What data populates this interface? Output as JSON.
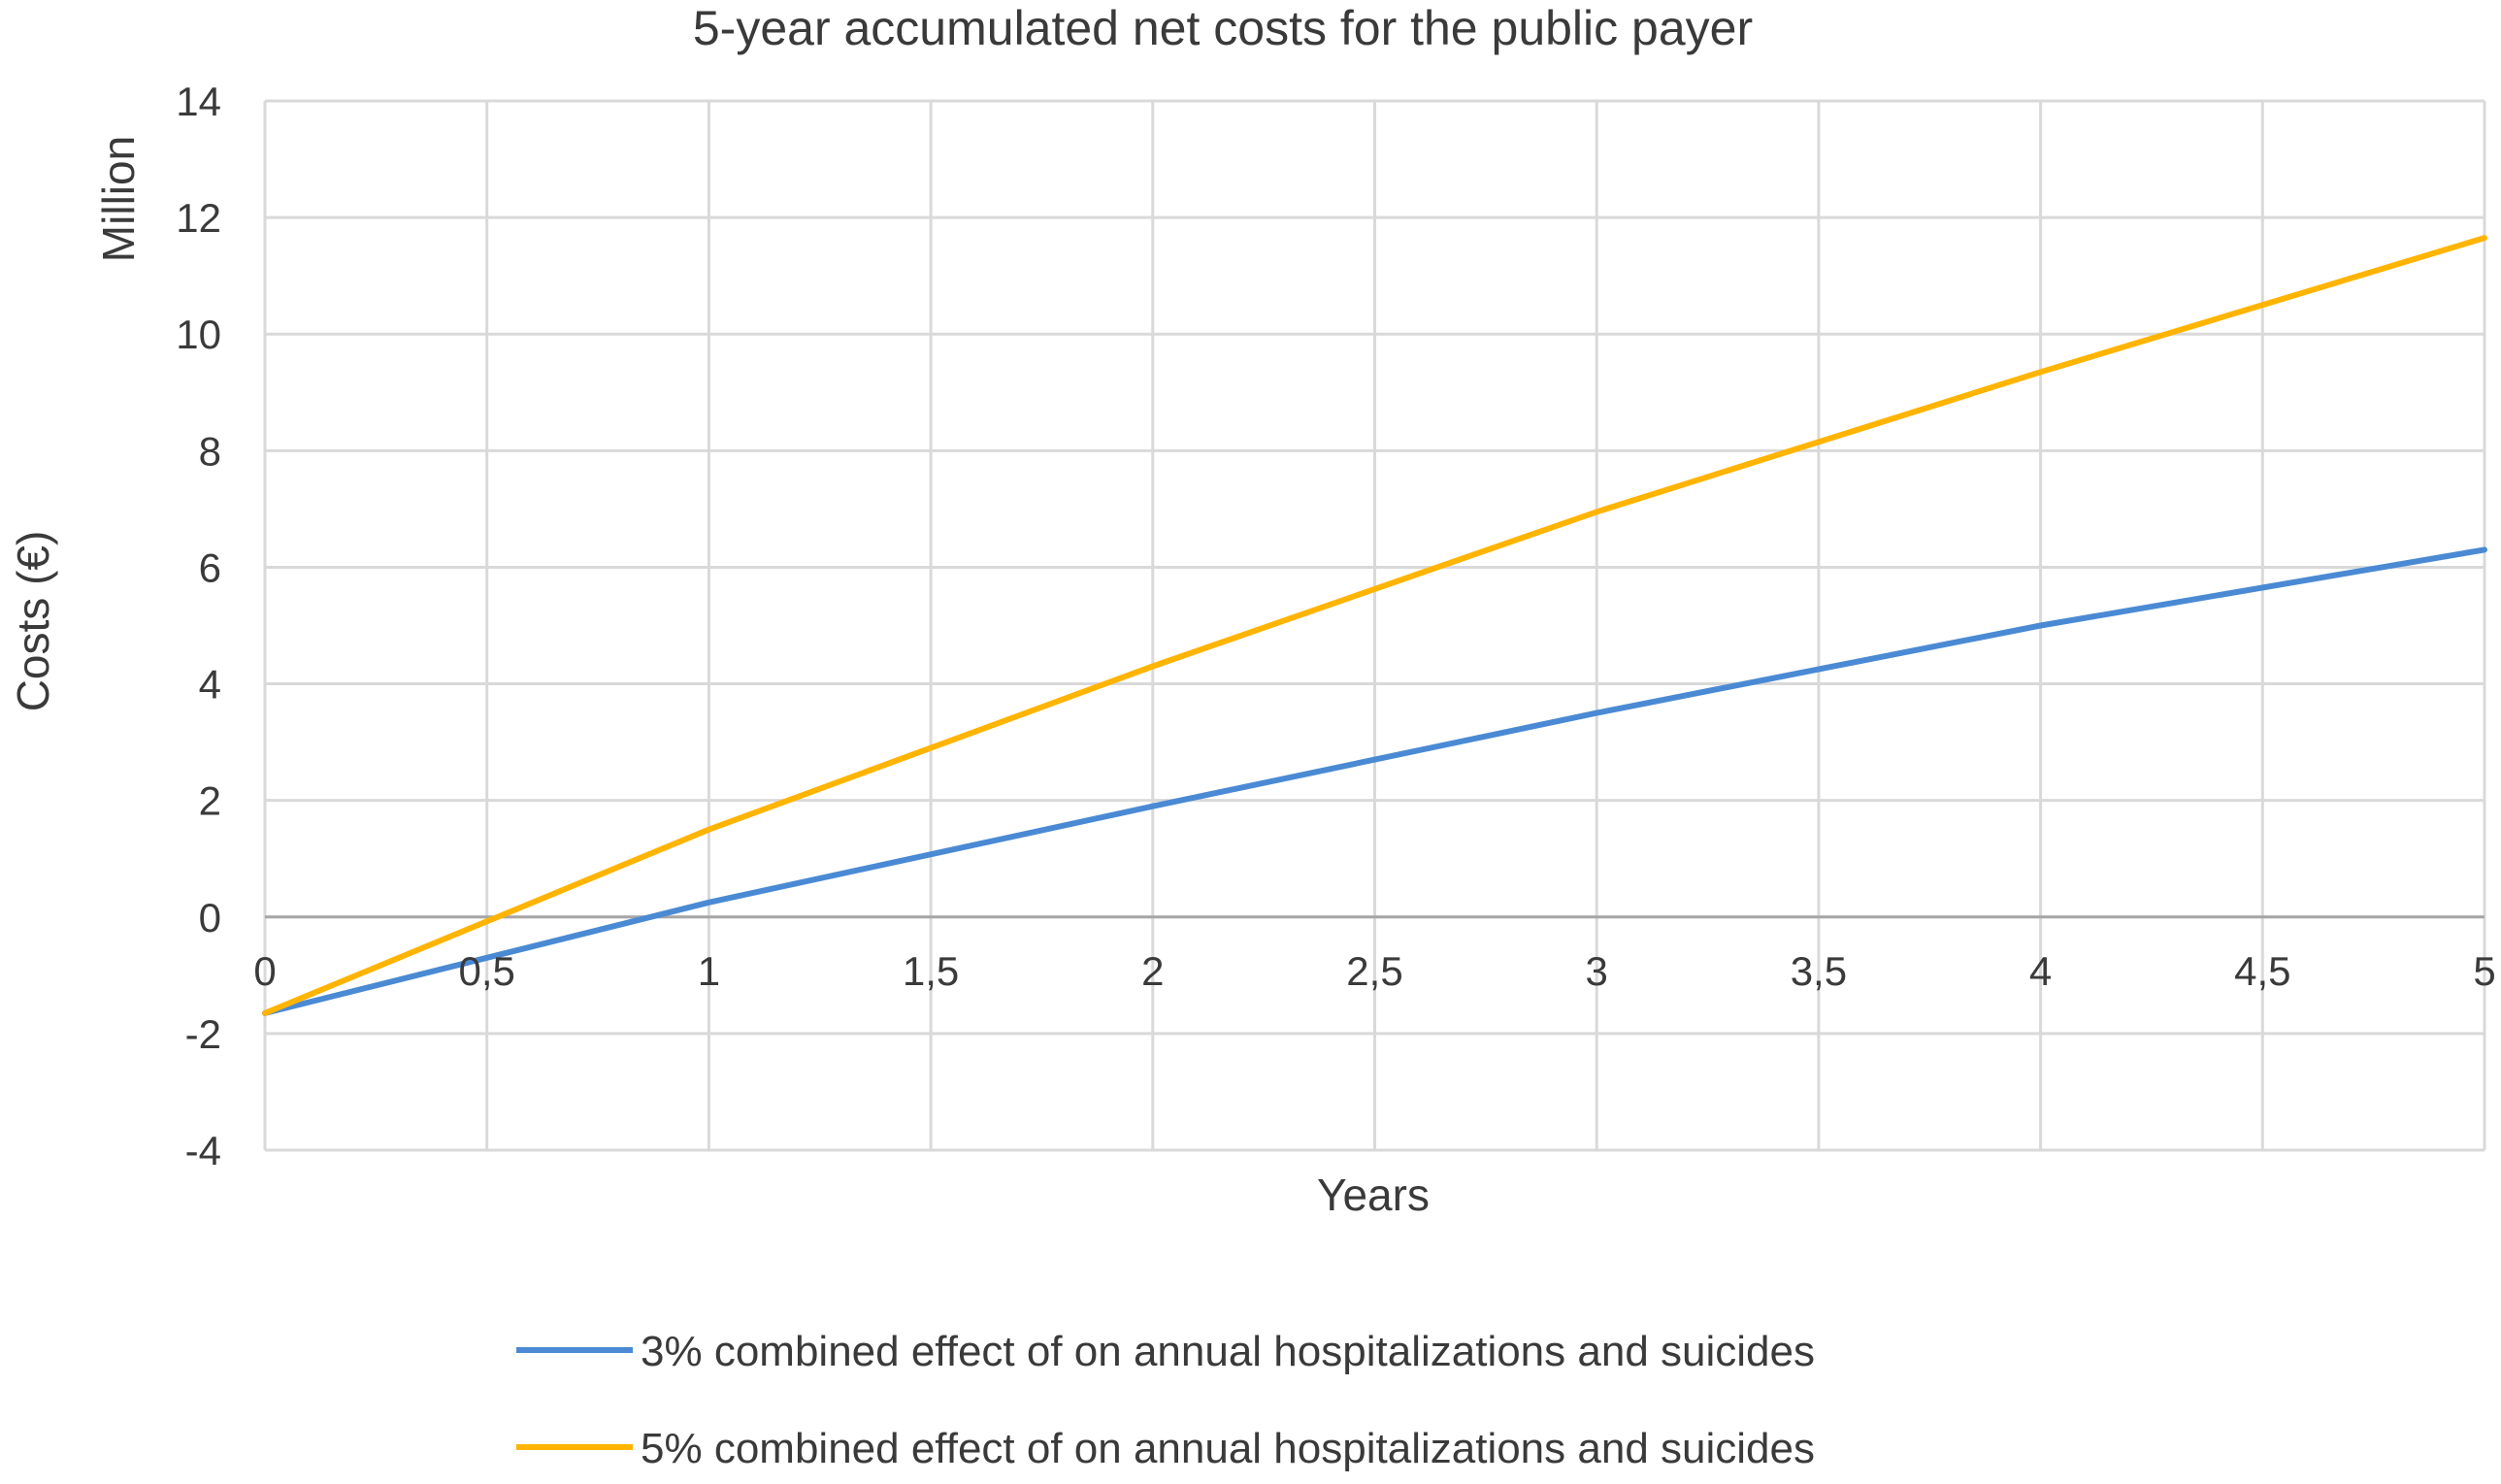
{
  "chart_data": {
    "type": "line",
    "title": "5-year accumulated net costs for the public payer",
    "xlabel": "Years",
    "ylabel": "Costs (€)",
    "ylabel_unit": "Million",
    "xlim": [
      0,
      5
    ],
    "ylim": [
      -4,
      14
    ],
    "x_ticks": [
      "0",
      "0,5",
      "1",
      "1,5",
      "2",
      "2,5",
      "3",
      "3,5",
      "4",
      "4,5",
      "5"
    ],
    "x_tick_values": [
      0,
      0.5,
      1,
      1.5,
      2,
      2.5,
      3,
      3.5,
      4,
      4.5,
      5
    ],
    "y_ticks": [
      "-4",
      "-2",
      "0",
      "2",
      "4",
      "6",
      "8",
      "10",
      "12",
      "14"
    ],
    "y_tick_values": [
      -4,
      -2,
      0,
      2,
      4,
      6,
      8,
      10,
      12,
      14
    ],
    "grid": true,
    "legend_position": "bottom",
    "series": [
      {
        "name": "3% combined effect of on annual hospitalizations and suicides",
        "color": "#4a8ad4",
        "x": [
          0,
          1,
          2,
          3,
          4,
          5
        ],
        "y": [
          -1.65,
          0.25,
          1.9,
          3.5,
          5.0,
          6.3
        ]
      },
      {
        "name": "5% combined effect of on annual hospitalizations and suicides",
        "color": "#ffb400",
        "x": [
          0,
          1,
          2,
          3,
          4,
          5
        ],
        "y": [
          -1.65,
          1.5,
          4.3,
          6.95,
          9.35,
          11.65
        ]
      }
    ]
  }
}
